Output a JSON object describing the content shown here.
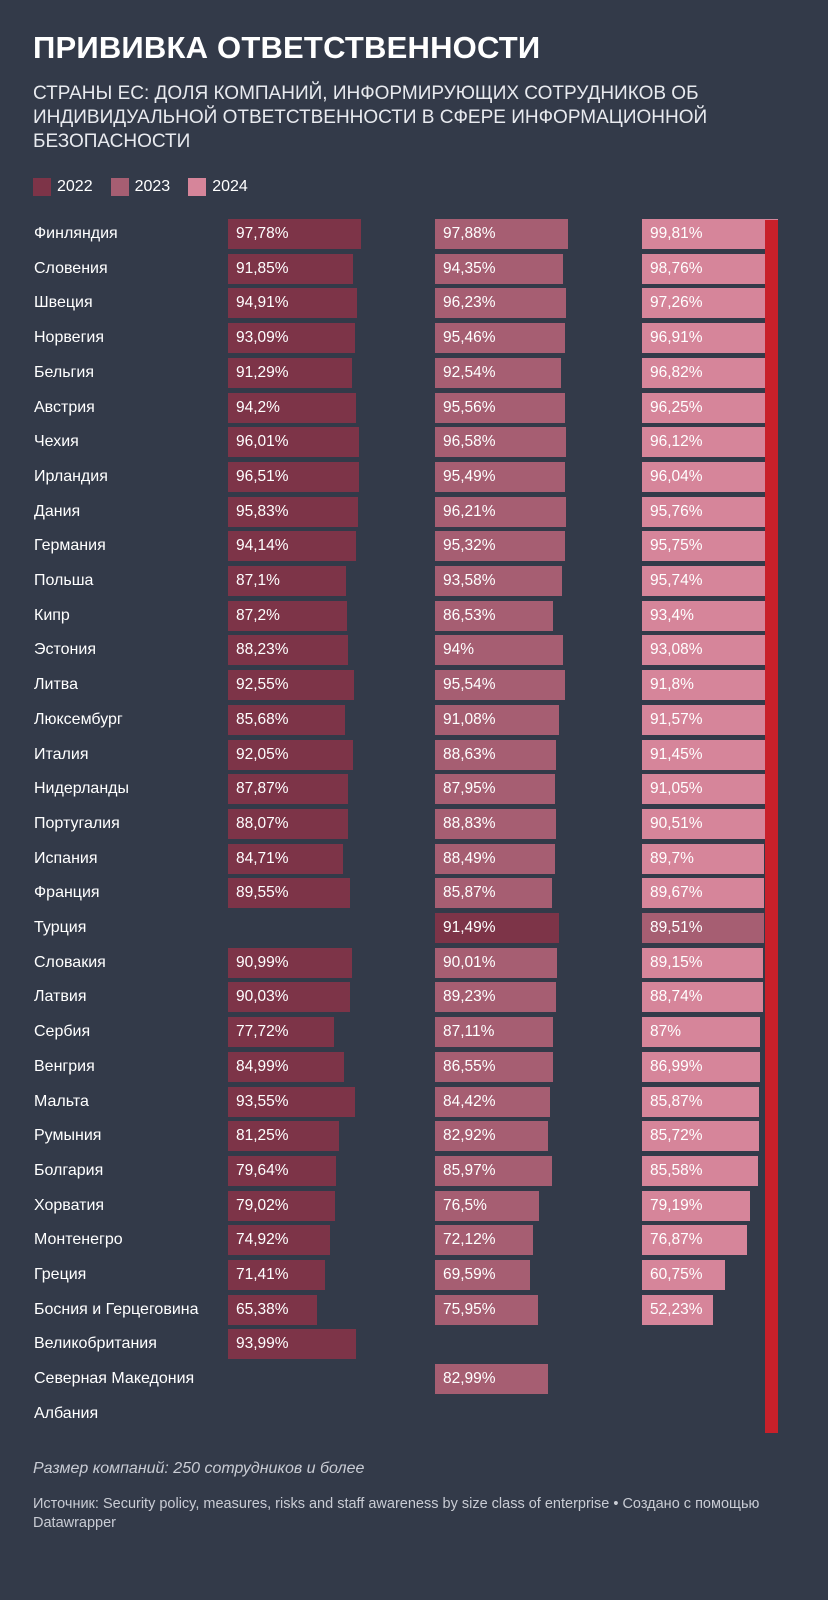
{
  "title": "ПРИВИВКА ОТВЕТСТВЕННОСТИ",
  "subtitle": "СТРАНЫ ЕС: ДОЛЯ КОМПАНИЙ, ИНФОРМИРУЮЩИХ СОТРУДНИКОВ ОБ ИНДИВИДУАЛЬНОЙ ОТВЕТСТВЕННОСТИ В СФЕРЕ ИНФОРМАЦИОННОЙ БЕЗОПАСНОСТИ",
  "note": "Размер компаний: 250 сотрудников и более",
  "source": "Источник: Security policy, measures, risks and staff awareness by size class of enterprise • Создано с помощью Datawrapper",
  "colors": {
    "2022": "#7d3448",
    "2023": "#a65e72",
    "2024": "#d6859a",
    "highlight": "#7d3448",
    "highlight_2024": "#a65e72",
    "reference": "#c8202a"
  },
  "chart_data": {
    "type": "bar",
    "orientation": "horizontal",
    "layout": "small-multiples",
    "xlim": [
      0,
      100
    ],
    "series": [
      {
        "name": "2022",
        "values": [
          97.78,
          91.85,
          94.91,
          93.09,
          91.29,
          94.2,
          96.01,
          96.51,
          95.83,
          94.14,
          87.1,
          87.2,
          88.23,
          92.55,
          85.68,
          92.05,
          87.87,
          88.07,
          84.71,
          89.55,
          null,
          90.99,
          90.03,
          77.72,
          84.99,
          93.55,
          81.25,
          79.64,
          79.02,
          74.92,
          71.41,
          65.38,
          93.99,
          null,
          null
        ],
        "labels": [
          "97,78%",
          "91,85%",
          "94,91%",
          "93,09%",
          "91,29%",
          "94,2%",
          "96,01%",
          "96,51%",
          "95,83%",
          "94,14%",
          "87,1%",
          "87,2%",
          "88,23%",
          "92,55%",
          "85,68%",
          "92,05%",
          "87,87%",
          "88,07%",
          "84,71%",
          "89,55%",
          null,
          "90,99%",
          "90,03%",
          "77,72%",
          "84,99%",
          "93,55%",
          "81,25%",
          "79,64%",
          "79,02%",
          "74,92%",
          "71,41%",
          "65,38%",
          "93,99%",
          null,
          null
        ]
      },
      {
        "name": "2023",
        "values": [
          97.88,
          94.35,
          96.23,
          95.46,
          92.54,
          95.56,
          96.58,
          95.49,
          96.21,
          95.32,
          93.58,
          86.53,
          94,
          95.54,
          91.08,
          88.63,
          87.95,
          88.83,
          88.49,
          85.87,
          91.49,
          90.01,
          89.23,
          87.11,
          86.55,
          84.42,
          82.92,
          85.97,
          76.5,
          72.12,
          69.59,
          75.95,
          null,
          82.99,
          null
        ],
        "labels": [
          "97,88%",
          "94,35%",
          "96,23%",
          "95,46%",
          "92,54%",
          "95,56%",
          "96,58%",
          "95,49%",
          "96,21%",
          "95,32%",
          "93,58%",
          "86,53%",
          "94%",
          "95,54%",
          "91,08%",
          "88,63%",
          "87,95%",
          "88,83%",
          "88,49%",
          "85,87%",
          "91,49%",
          "90,01%",
          "89,23%",
          "87,11%",
          "86,55%",
          "84,42%",
          "82,92%",
          "85,97%",
          "76,5%",
          "72,12%",
          "69,59%",
          "75,95%",
          null,
          "82,99%",
          null
        ]
      },
      {
        "name": "2024",
        "values": [
          99.81,
          98.76,
          97.26,
          96.91,
          96.82,
          96.25,
          96.12,
          96.04,
          95.76,
          95.75,
          95.74,
          93.4,
          93.08,
          91.8,
          91.57,
          91.45,
          91.05,
          90.51,
          89.7,
          89.67,
          89.51,
          89.15,
          88.74,
          87,
          86.99,
          85.87,
          85.72,
          85.58,
          79.19,
          76.87,
          60.75,
          52.23,
          null,
          null,
          null
        ],
        "labels": [
          "99,81%",
          "98,76%",
          "97,26%",
          "96,91%",
          "96,82%",
          "96,25%",
          "96,12%",
          "96,04%",
          "95,76%",
          "95,75%",
          "95,74%",
          "93,4%",
          "93,08%",
          "91,8%",
          "91,57%",
          "91,45%",
          "91,05%",
          "90,51%",
          "89,7%",
          "89,67%",
          "89,51%",
          "89,15%",
          "88,74%",
          "87%",
          "86,99%",
          "85,87%",
          "85,72%",
          "85,58%",
          "79,19%",
          "76,87%",
          "60,75%",
          "52,23%",
          null,
          null,
          null
        ]
      }
    ],
    "categories": [
      "Финляндия",
      "Словения",
      "Швеция",
      "Норвегия",
      "Бельгия",
      "Австрия",
      "Чехия",
      "Ирландия",
      "Дания",
      "Германия",
      "Польша",
      "Кипр",
      "Эстония",
      "Литва",
      "Люксембург",
      "Италия",
      "Нидерланды",
      "Португалия",
      "Испания",
      "Франция",
      "Турция",
      "Словакия",
      "Латвия",
      "Сербия",
      "Венгрия",
      "Мальта",
      "Румыния",
      "Болгария",
      "Хорватия",
      "Монтенегро",
      "Греция",
      "Босния и Герцеговина",
      "Великобритания",
      "Северная Македония",
      "Албания"
    ],
    "highlighted_category": "Турция",
    "reference_line": 100,
    "legend": [
      "2022",
      "2023",
      "2024"
    ]
  }
}
